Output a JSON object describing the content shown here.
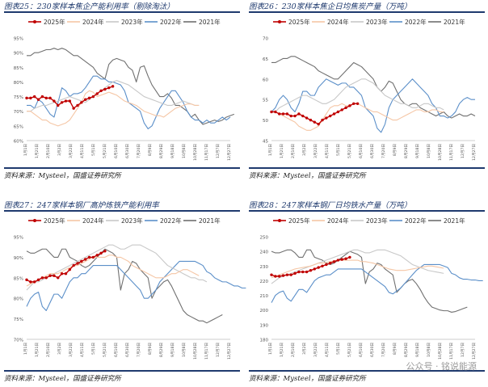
{
  "source_text": "资料来源：Mysteel，国盛证券研究所",
  "watermark": "公众号 · 铭说能源",
  "legend": [
    "2025年",
    "2024年",
    "2023年",
    "2022年",
    "2021年"
  ],
  "colors": {
    "2025年": "#c00000",
    "2024年": "#f5c6a5",
    "2023年": "#c8c8c8",
    "2022年": "#5b8fc9",
    "2021年": "#707070"
  },
  "x_ticks": [
    "1月1日",
    "1月21日",
    "2月10日",
    "3月2日",
    "3月22日",
    "4月11日",
    "5月1日",
    "5月21日",
    "6月10日",
    "6月30日",
    "7月20日",
    "8月9日",
    "8月29日",
    "9月18日",
    "10月8日",
    "10月28日",
    "11月17日",
    "12月7日",
    "12月27日"
  ],
  "chart_data": [
    {
      "type": "line",
      "title": "图表25：230家样本焦企产能利用率（剔除淘汰）",
      "ylim": [
        60,
        95
      ],
      "yticks": [
        60,
        65,
        70,
        75,
        80,
        85,
        90,
        95
      ],
      "yformat": "pct",
      "series": [
        {
          "name": "2025年",
          "values": [
            74.5,
            74.5,
            75,
            74,
            75,
            74.5,
            74.5,
            73.5,
            72,
            73,
            73.5,
            73.5,
            71,
            72,
            73,
            74,
            74.5,
            75,
            76,
            77,
            77.5,
            78,
            78.5
          ]
        },
        {
          "name": "2024年",
          "values": [
            70,
            70,
            69,
            68,
            67,
            67,
            66,
            65.5,
            65,
            65.5,
            66,
            67,
            69,
            71,
            73,
            76,
            77,
            76.5,
            75,
            75.5,
            76,
            76.5,
            76,
            75.5,
            74.5,
            73.5,
            73,
            72.5,
            72,
            71,
            70,
            69.5,
            69,
            68.5,
            68.5,
            68,
            69,
            70,
            71,
            71.5,
            72,
            72.5,
            72.5,
            72,
            72
          ]
        },
        {
          "name": "2023年",
          "values": [
            70,
            70,
            71,
            71.5,
            72,
            72,
            72.5,
            73,
            73.5,
            74,
            74.5,
            75,
            74.5,
            74,
            73.5,
            73,
            74,
            75,
            76,
            77,
            78,
            79,
            80,
            80.5,
            80,
            79.5,
            79,
            78,
            77,
            76,
            75,
            74.5,
            74,
            73.5,
            73,
            72.5,
            72,
            72,
            72.5,
            73,
            73.5,
            73,
            72.5,
            72,
            72
          ]
        },
        {
          "name": "2022年",
          "values": [
            72,
            72,
            71,
            74,
            73,
            71,
            69,
            68,
            73,
            78,
            77,
            75,
            76,
            76,
            76.5,
            78,
            80,
            82,
            82,
            81,
            81,
            80,
            80,
            79.5,
            79,
            77,
            73,
            72,
            71,
            70,
            66,
            64,
            65,
            68,
            71,
            73,
            75,
            77,
            77,
            75,
            73,
            70,
            68,
            67,
            67,
            66,
            67,
            66,
            66,
            67,
            68,
            67,
            68
          ]
        },
        {
          "name": "2021年",
          "values": [
            89,
            89,
            90,
            90,
            90.5,
            91,
            91,
            91.5,
            91,
            91.5,
            91,
            90,
            89,
            89,
            88,
            87,
            86,
            85,
            83,
            82,
            81,
            86,
            87.5,
            88,
            87.5,
            87,
            85,
            84,
            80,
            85,
            85.5,
            82,
            79,
            77,
            75,
            75,
            76,
            74.5,
            72,
            72,
            71,
            70,
            68,
            69,
            67,
            65.5,
            66,
            66.5,
            67,
            66.5,
            67,
            68,
            68.5,
            69
          ]
        }
      ]
    },
    {
      "type": "line",
      "title": "图表26：230家样本焦企日均焦炭产量（万吨）",
      "ylim": [
        45,
        70
      ],
      "yticks": [
        45,
        50,
        55,
        60,
        65,
        70
      ],
      "yformat": "num",
      "series": [
        {
          "name": "2025年",
          "values": [
            52,
            52,
            51.5,
            51.5,
            51.5,
            51,
            51,
            51.5,
            51,
            50.5,
            50,
            49.5,
            49,
            50,
            50.5,
            51,
            51.5,
            52,
            52.5,
            53,
            53.5,
            54,
            54
          ]
        },
        {
          "name": "2024年",
          "values": [
            52,
            52,
            51.5,
            51,
            50.5,
            50,
            49.5,
            48.5,
            48,
            47.5,
            47.5,
            48,
            48.5,
            50,
            51.5,
            53,
            53.5,
            53.5,
            54,
            53.5,
            53.5,
            54,
            54,
            53.5,
            53,
            52.5,
            52,
            52,
            51.5,
            51,
            50.5,
            50,
            50,
            50.5,
            51,
            51.5,
            52,
            52.5,
            52.5,
            52,
            52,
            52.5,
            52.5,
            52,
            52
          ]
        },
        {
          "name": "2023年",
          "values": [
            52,
            52,
            53,
            53.5,
            54,
            54.5,
            55,
            55.5,
            56,
            56,
            55.5,
            55,
            54.5,
            54,
            54,
            54.5,
            55,
            56,
            57,
            58,
            58.5,
            59,
            59.5,
            60,
            60,
            59.5,
            59,
            58,
            57,
            56,
            55.5,
            55,
            54.5,
            54,
            54,
            53.5,
            53,
            53,
            53.5,
            54,
            54,
            53.5,
            53,
            53,
            52.5
          ]
        },
        {
          "name": "2022年",
          "values": [
            52,
            53,
            55,
            56,
            55,
            53,
            52,
            54,
            57,
            57,
            56,
            56,
            58,
            59,
            60,
            59.5,
            59,
            58.5,
            59,
            59,
            58,
            58,
            57,
            56,
            53,
            52,
            51,
            48,
            47,
            49,
            53,
            55,
            56,
            57,
            58,
            59,
            60,
            59,
            58,
            57,
            56,
            54,
            53,
            51,
            51,
            50.5,
            51,
            52,
            54,
            55,
            55.5,
            55,
            55
          ]
        },
        {
          "name": "2021年",
          "values": [
            64,
            64,
            64.5,
            65,
            65,
            65.5,
            65.5,
            65,
            64.5,
            64,
            63.5,
            63,
            62,
            61.5,
            61,
            60.5,
            60,
            60,
            61,
            62,
            63,
            64,
            63.5,
            63,
            62,
            61,
            60,
            58,
            57,
            58,
            59.5,
            59,
            57,
            55,
            54,
            53.5,
            54,
            54,
            53,
            52.5,
            52,
            51.5,
            51,
            51.5,
            52,
            51,
            50.5,
            51,
            51.5,
            51,
            51,
            51.5,
            51
          ]
        }
      ]
    },
    {
      "type": "line",
      "title": "图表27：247家样本钢厂高炉炼铁产能利用率",
      "ylim": [
        70,
        95
      ],
      "yticks": [
        70,
        75,
        80,
        85,
        90,
        95
      ],
      "yformat": "pct",
      "series": [
        {
          "name": "2025年",
          "values": [
            84.5,
            84,
            84,
            84.5,
            85,
            85,
            85.5,
            85.5,
            85,
            86,
            86,
            87,
            88,
            88.5,
            89,
            89.5,
            90,
            90,
            90.5,
            91,
            91.5
          ]
        },
        {
          "name": "2024年",
          "values": [
            83,
            83.5,
            84,
            84.5,
            85,
            85.5,
            86,
            86,
            86,
            86.5,
            87,
            87.5,
            88,
            88,
            88.5,
            89,
            89.5,
            90,
            90,
            90,
            90,
            90.5,
            90.5,
            90,
            90,
            89.5,
            89,
            88,
            87.5,
            87,
            86.5,
            86,
            85.5,
            85,
            85,
            85,
            85.5,
            86,
            86,
            86.5,
            87,
            87,
            86.5,
            86,
            85.5
          ]
        },
        {
          "name": "2023年",
          "values": [
            82,
            83,
            84,
            84,
            84.5,
            85,
            85.5,
            86,
            86.5,
            87,
            87.5,
            88,
            88.5,
            89,
            89.5,
            90,
            90.5,
            91,
            91.5,
            92,
            92.5,
            93,
            93,
            92.5,
            92,
            92,
            92.5,
            93,
            93,
            93,
            92.5,
            92,
            91.5,
            91,
            90,
            89,
            88,
            87.5,
            87,
            86.5,
            86,
            85.5,
            85,
            85,
            84.5,
            84.5,
            84
          ]
        },
        {
          "name": "2022年",
          "values": [
            78,
            80,
            81,
            81.5,
            78,
            77,
            79,
            81,
            81,
            80,
            82,
            84,
            85,
            85,
            86,
            86,
            87,
            88,
            88,
            88,
            88,
            88,
            88,
            88,
            87,
            86,
            85,
            84,
            83,
            82,
            80,
            80,
            81,
            82,
            84,
            85,
            86,
            87,
            88,
            89,
            89,
            89,
            89,
            89,
            88.5,
            88,
            86.5,
            86,
            85,
            84.5,
            84,
            84,
            83.5,
            83,
            83,
            82.5,
            82.5
          ]
        },
        {
          "name": "2021年",
          "values": [
            91.5,
            91,
            91,
            91.5,
            92,
            92,
            91,
            90,
            90,
            92,
            92,
            90,
            89.5,
            89,
            88,
            87.5,
            88,
            89,
            90,
            91,
            92,
            91.5,
            91,
            90,
            82,
            86,
            87,
            89,
            88.5,
            87,
            86,
            85,
            80,
            82,
            83,
            84,
            84.5,
            83,
            81,
            79,
            77,
            76,
            75.5,
            75,
            74.5,
            74.5,
            74,
            74.5,
            75,
            75.5,
            76
          ]
        }
      ]
    },
    {
      "type": "line",
      "title": "图表28：247家样本钢厂日均铁水产量（万吨）",
      "ylim": [
        180,
        250
      ],
      "yticks": [
        180,
        190,
        200,
        210,
        220,
        230,
        240,
        250
      ],
      "yformat": "num",
      "series": [
        {
          "name": "2025年",
          "values": [
            224,
            223,
            223,
            223.5,
            224,
            224,
            225,
            226,
            226,
            226,
            227,
            228,
            229,
            230,
            231,
            232,
            233,
            234,
            234.5,
            235,
            236
          ]
        },
        {
          "name": "2024年",
          "values": [
            222,
            223,
            224,
            225,
            226,
            227,
            228,
            228.5,
            229,
            229.5,
            230,
            231,
            232,
            232,
            232.5,
            233,
            233.5,
            234,
            234,
            234,
            234,
            234,
            234,
            233,
            233,
            232.5,
            232,
            231,
            230,
            229,
            228,
            227.5,
            227,
            227,
            227,
            227.5,
            228,
            228.5,
            229,
            229.5,
            230,
            230,
            229.5,
            229,
            228.5
          ]
        },
        {
          "name": "2023年",
          "values": [
            218,
            220,
            222,
            223,
            224,
            225,
            226,
            227,
            228,
            229,
            230,
            231,
            232,
            233,
            234,
            235,
            236,
            237,
            238,
            239,
            240,
            241,
            241,
            240,
            239,
            239,
            240,
            241,
            241,
            241,
            240,
            239,
            238,
            237,
            235,
            233,
            231,
            230,
            229,
            228,
            227,
            226.5,
            226,
            225.5,
            225
          ]
        },
        {
          "name": "2022年",
          "values": [
            205,
            210,
            212,
            213,
            208,
            206,
            210,
            214,
            214,
            212,
            216,
            220,
            222,
            223,
            224,
            224,
            226,
            228,
            228,
            228,
            228,
            228,
            228,
            228,
            226,
            224,
            222,
            220,
            218,
            216,
            212,
            211,
            213,
            215,
            218,
            221,
            224,
            227,
            229,
            231,
            231,
            231,
            231,
            231,
            230,
            229,
            225,
            224,
            222,
            221,
            221,
            220.5,
            220.5,
            220,
            220
          ]
        },
        {
          "name": "2021年",
          "values": [
            240,
            239,
            239,
            240,
            241,
            241,
            239,
            236,
            236,
            241,
            241,
            236,
            235,
            234,
            232,
            231,
            232,
            234,
            236,
            238,
            240,
            239,
            238,
            236,
            218,
            226,
            228,
            232,
            231,
            228,
            226,
            224,
            212,
            215,
            218,
            220,
            221,
            218,
            214,
            209,
            205,
            202,
            201,
            200,
            199.5,
            199.5,
            198.5,
            199,
            200,
            201,
            202
          ]
        }
      ]
    }
  ]
}
